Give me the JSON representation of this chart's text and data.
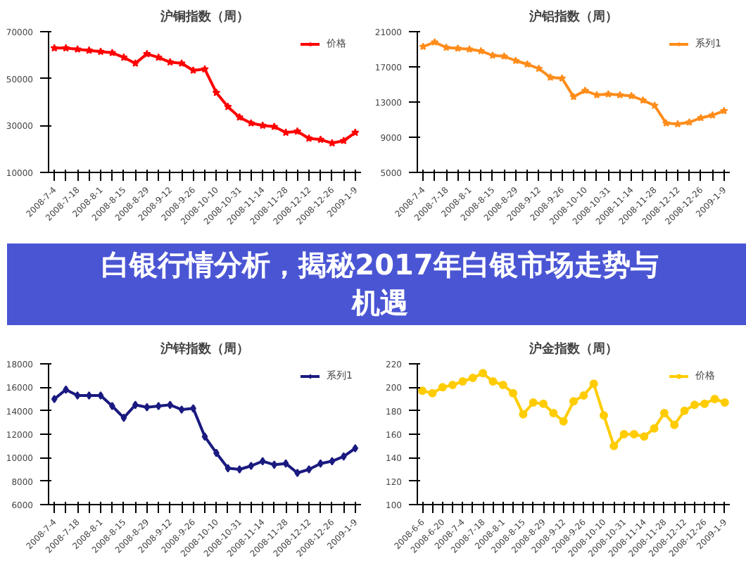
{
  "chart_data": [
    {
      "type": "line",
      "title": "沪铜指数（周）",
      "categories": [
        "2008-7-4",
        null,
        "2008-7-18",
        null,
        "2008-8-1",
        null,
        "2008-8-15",
        null,
        "2008-8-29",
        null,
        "2008-9-12",
        null,
        "2008-9-26",
        null,
        "2008-10-10",
        null,
        "2008-10-31",
        null,
        "2008-11-14",
        null,
        "2008-11-28",
        null,
        "2008-12-12",
        null,
        "2008-12-26",
        null,
        "2009-1-9"
      ],
      "series": [
        {
          "name": "价格",
          "color": "#ff0000",
          "values": [
            63000,
            63000,
            62500,
            62000,
            61500,
            61000,
            59000,
            56500,
            60500,
            59000,
            57000,
            56500,
            53500,
            54000,
            44000,
            38000,
            33500,
            31000,
            30000,
            29500,
            27000,
            27500,
            24500,
            24000,
            22500,
            23500,
            27000
          ]
        }
      ],
      "ylim": [
        10000,
        70000
      ],
      "yticks": [
        10000,
        30000,
        50000,
        70000
      ],
      "grid": false,
      "legend": "top right",
      "marker": "star",
      "line_style": "solid"
    },
    {
      "type": "line",
      "title": "沪铝指数（周）",
      "categories": [
        "2008-7-4",
        null,
        "2008-7-18",
        null,
        "2008-8-1",
        null,
        "2008-8-15",
        null,
        "2008-8-29",
        null,
        "2008-9-12",
        null,
        "2008-9-26",
        null,
        "2008-10-10",
        null,
        "2008-10-31",
        null,
        "2008-11-14",
        null,
        "2008-11-28",
        null,
        "2008-12-12",
        null,
        "2008-12-26",
        null,
        "2009-1-9"
      ],
      "series": [
        {
          "name": "系列1",
          "color": "#ff8c1a",
          "values": [
            19300,
            19800,
            19200,
            19100,
            19000,
            18800,
            18300,
            18200,
            17700,
            17300,
            16800,
            15800,
            15700,
            13600,
            14300,
            13800,
            13900,
            13800,
            13700,
            13200,
            12600,
            10600,
            10500,
            10700,
            11200,
            11500,
            12000
          ]
        }
      ],
      "ylim": [
        5000,
        21000
      ],
      "yticks": [
        5000,
        9000,
        13000,
        17000,
        21000
      ],
      "grid": false,
      "legend": "top right",
      "marker": "star",
      "line_style": "solid"
    },
    {
      "type": "other",
      "title": "白银行情分析，揭秘2017年白银市场走势与机遇"
    },
    {
      "type": "line",
      "title": "沪锌指数（周）",
      "categories": [
        "2008-7-4",
        null,
        "2008-7-18",
        null,
        "2008-8-1",
        null,
        "2008-8-15",
        null,
        "2008-8-29",
        null,
        "2008-9-12",
        null,
        "2008-9-26",
        null,
        "2008-10-10",
        null,
        "2008-10-31",
        null,
        "2008-11-14",
        null,
        "2008-11-28",
        null,
        "2008-12-12",
        null,
        "2008-12-26",
        null,
        "2009-1-9"
      ],
      "series": [
        {
          "name": "系列1",
          "color": "#1a1a80",
          "values": [
            15000,
            15800,
            15300,
            15300,
            15300,
            14400,
            13400,
            14500,
            14300,
            14400,
            14500,
            14100,
            14200,
            11800,
            10400,
            9100,
            9000,
            9300,
            9700,
            9400,
            9500,
            8700,
            9000,
            9500,
            9700,
            10100,
            10800
          ]
        }
      ],
      "ylim": [
        6000,
        18000
      ],
      "yticks": [
        6000,
        8000,
        10000,
        12000,
        14000,
        16000,
        18000
      ],
      "grid": false,
      "legend": "top right",
      "marker": "diamond",
      "line_style": "solid"
    },
    {
      "type": "line",
      "title": "沪金指数（周）",
      "categories": [
        "2008-6-6",
        null,
        "2008-6-20",
        null,
        "2008-7-4",
        null,
        "2008-7-18",
        null,
        "2008-8-1",
        null,
        "2008-8-15",
        null,
        "2008-8-29",
        null,
        "2008-9-12",
        null,
        "2008-9-26",
        null,
        "2008-10-10",
        null,
        "2008-10-31",
        null,
        "2008-11-14",
        null,
        "2008-11-28",
        null,
        "2008-12-12",
        null,
        "2008-12-26",
        null,
        "2009-1-9"
      ],
      "series": [
        {
          "name": "价格",
          "color": "#ffcc00",
          "values": [
            197,
            195,
            200,
            202,
            205,
            208,
            212,
            205,
            202,
            195,
            177,
            187,
            186,
            178,
            171,
            188,
            193,
            203,
            176,
            150,
            160,
            160,
            158,
            165,
            178,
            168,
            180,
            185,
            186,
            190,
            187
          ]
        }
      ],
      "ylim": [
        100,
        220
      ],
      "yticks": [
        100,
        120,
        140,
        160,
        180,
        200,
        220
      ],
      "grid": false,
      "legend": "top right",
      "marker": "circle",
      "line_style": "solid"
    }
  ]
}
